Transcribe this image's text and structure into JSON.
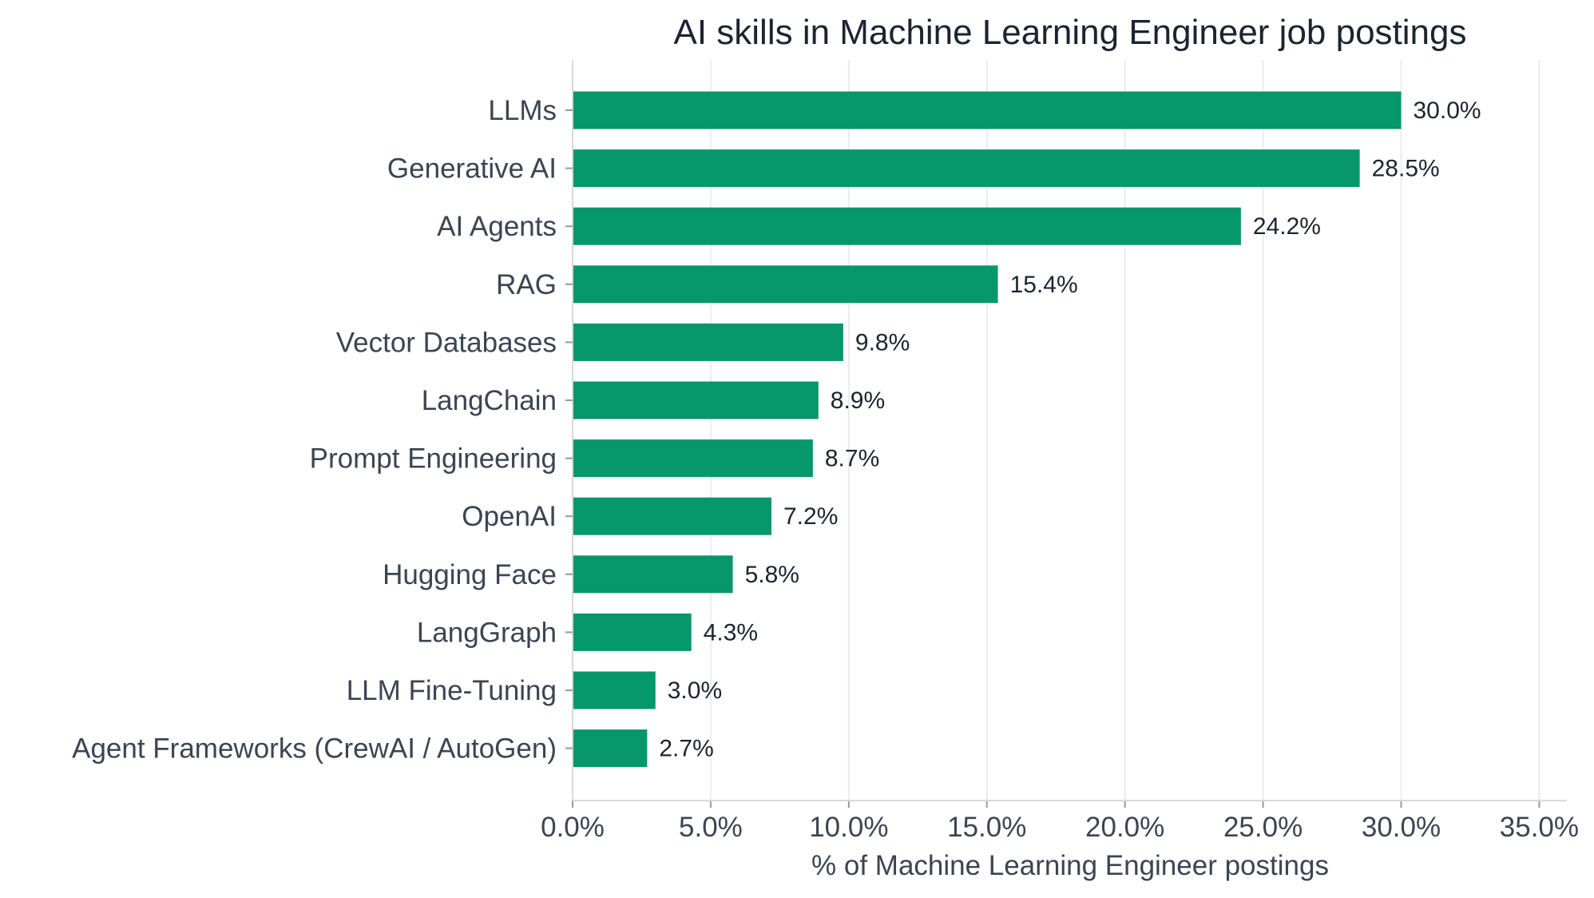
{
  "chart_data": {
    "type": "bar",
    "orientation": "horizontal",
    "title": "AI skills in Machine Learning Engineer job postings",
    "xlabel": "% of Machine Learning Engineer postings",
    "ylabel": "",
    "categories": [
      "LLMs",
      "Generative AI",
      "AI Agents",
      "RAG",
      "Vector Databases",
      "LangChain",
      "Prompt Engineering",
      "OpenAI",
      "Hugging Face",
      "LangGraph",
      "LLM Fine-Tuning",
      "Agent Frameworks (CrewAI / AutoGen)"
    ],
    "values": [
      30.0,
      28.5,
      24.2,
      15.4,
      9.8,
      8.9,
      8.7,
      7.2,
      5.8,
      4.3,
      3.0,
      2.7
    ],
    "value_labels": [
      "30.0%",
      "28.5%",
      "24.2%",
      "15.4%",
      "9.8%",
      "8.9%",
      "8.7%",
      "7.2%",
      "5.8%",
      "4.3%",
      "3.0%",
      "2.7%"
    ],
    "xlim": [
      0,
      36
    ],
    "xticks": [
      0,
      5,
      10,
      15,
      20,
      25,
      30,
      35
    ],
    "xtick_labels": [
      "0.0%",
      "5.0%",
      "10.0%",
      "15.0%",
      "20.0%",
      "25.0%",
      "30.0%",
      "35.0%"
    ],
    "grid": "vertical",
    "legend": "none",
    "bar_color": "#06976a"
  }
}
